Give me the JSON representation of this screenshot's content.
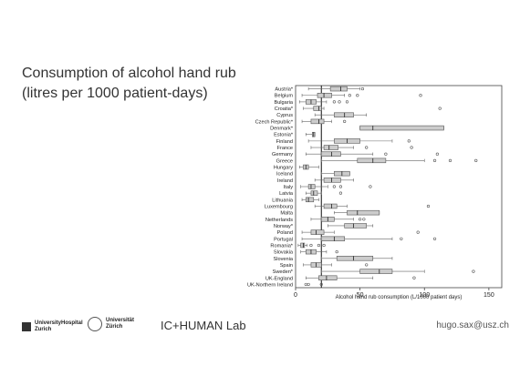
{
  "slide": {
    "title_line1": "Consumption of alcohol hand rub",
    "title_line2": "(litres per 1000 patient-days)"
  },
  "footer": {
    "hospital_line1": "UniversityHospital",
    "hospital_line2": "Zurich",
    "university_line1": "Universität",
    "university_line2": "Zürich",
    "lab_name": "IC+HUMAN Lab",
    "email": "hugo.sax@usz.ch"
  },
  "chart_data": {
    "type": "boxplot",
    "orientation": "horizontal",
    "xlabel": "Alcohol hand rub consumption (L/1000 patient days)",
    "xlim": [
      0,
      160
    ],
    "xticks": [
      0,
      50,
      100,
      150
    ],
    "reference_line": 20,
    "categories": [
      "Austria*",
      "Belgium",
      "Bulgaria",
      "Croatia*",
      "Cyprus",
      "Czech Republic*",
      "Denmark*",
      "Estonia*",
      "Finland",
      "France",
      "Germany",
      "Greece",
      "Hungary",
      "Iceland",
      "Ireland",
      "Italy",
      "Latvia",
      "Lithuania",
      "Luxembourg",
      "Malta",
      "Netherlands",
      "Norway*",
      "Poland",
      "Portugal",
      "Romania*",
      "Slovakia",
      "Slovenia",
      "Spain",
      "Sweden*",
      "UK-England",
      "UK-Northern Ireland"
    ],
    "boxes": [
      {
        "min": 10,
        "q1": 27,
        "median": 35,
        "q3": 40,
        "max": 50,
        "outliers": [
          52
        ]
      },
      {
        "min": 5,
        "q1": 17,
        "median": 22,
        "q3": 28,
        "max": 38,
        "outliers": [
          42,
          48,
          97
        ]
      },
      {
        "min": 3,
        "q1": 8,
        "median": 12,
        "q3": 16,
        "max": 24,
        "outliers": [
          30,
          34,
          40
        ]
      },
      {
        "min": 6,
        "q1": 14,
        "median": 18,
        "q3": 20,
        "max": 22,
        "outliers": [
          112
        ]
      },
      {
        "min": 15,
        "q1": 30,
        "median": 38,
        "q3": 45,
        "max": 55,
        "outliers": []
      },
      {
        "min": 5,
        "q1": 12,
        "median": 18,
        "q3": 22,
        "max": 28,
        "outliers": [
          38
        ]
      },
      {
        "min": 50,
        "q1": 50,
        "median": 60,
        "q3": 115,
        "max": 115,
        "outliers": []
      },
      {
        "min": 8,
        "q1": 13,
        "median": 14,
        "q3": 15,
        "max": 15,
        "outliers": []
      },
      {
        "min": 10,
        "q1": 30,
        "median": 40,
        "q3": 50,
        "max": 75,
        "outliers": [
          88
        ]
      },
      {
        "min": 12,
        "q1": 22,
        "median": 26,
        "q3": 33,
        "max": 45,
        "outliers": [
          55,
          90
        ]
      },
      {
        "min": 8,
        "q1": 20,
        "median": 28,
        "q3": 35,
        "max": 60,
        "outliers": [
          70,
          110
        ]
      },
      {
        "min": 20,
        "q1": 48,
        "median": 60,
        "q3": 70,
        "max": 100,
        "outliers": [
          108,
          120,
          140
        ]
      },
      {
        "min": 3,
        "q1": 6,
        "median": 8,
        "q3": 10,
        "max": 18,
        "outliers": []
      },
      {
        "min": 20,
        "q1": 30,
        "median": 36,
        "q3": 42,
        "max": 42,
        "outliers": []
      },
      {
        "min": 15,
        "q1": 22,
        "median": 28,
        "q3": 35,
        "max": 45,
        "outliers": []
      },
      {
        "min": 4,
        "q1": 10,
        "median": 12,
        "q3": 15,
        "max": 25,
        "outliers": [
          30,
          35,
          58
        ]
      },
      {
        "min": 8,
        "q1": 12,
        "median": 14,
        "q3": 17,
        "max": 20,
        "outliers": [
          35
        ]
      },
      {
        "min": 5,
        "q1": 8,
        "median": 10,
        "q3": 14,
        "max": 18,
        "outliers": []
      },
      {
        "min": 15,
        "q1": 22,
        "median": 28,
        "q3": 32,
        "max": 40,
        "outliers": [
          103
        ]
      },
      {
        "min": 30,
        "q1": 40,
        "median": 48,
        "q3": 65,
        "max": 65,
        "outliers": []
      },
      {
        "min": 12,
        "q1": 20,
        "median": 25,
        "q3": 30,
        "max": 45,
        "outliers": [
          50,
          53
        ]
      },
      {
        "min": 25,
        "q1": 38,
        "median": 45,
        "q3": 55,
        "max": 60,
        "outliers": []
      },
      {
        "min": 5,
        "q1": 12,
        "median": 16,
        "q3": 22,
        "max": 30,
        "outliers": [
          95
        ]
      },
      {
        "min": 5,
        "q1": 20,
        "median": 30,
        "q3": 38,
        "max": 75,
        "outliers": [
          82,
          108
        ]
      },
      {
        "min": 2,
        "q1": 4,
        "median": 6,
        "q3": 7,
        "max": 9,
        "outliers": [
          12,
          18,
          22
        ]
      },
      {
        "min": 4,
        "q1": 8,
        "median": 12,
        "q3": 16,
        "max": 24,
        "outliers": [
          32
        ]
      },
      {
        "min": 20,
        "q1": 32,
        "median": 45,
        "q3": 60,
        "max": 75,
        "outliers": []
      },
      {
        "min": 6,
        "q1": 12,
        "median": 16,
        "q3": 20,
        "max": 28,
        "outliers": [
          55
        ]
      },
      {
        "min": 20,
        "q1": 50,
        "median": 65,
        "q3": 75,
        "max": 100,
        "outliers": [
          138
        ]
      },
      {
        "min": 8,
        "q1": 18,
        "median": 24,
        "q3": 32,
        "max": 60,
        "outliers": [
          92
        ]
      },
      {
        "min": null,
        "q1": null,
        "median": null,
        "q3": null,
        "max": null,
        "outliers": [
          8,
          10,
          20
        ]
      }
    ]
  }
}
